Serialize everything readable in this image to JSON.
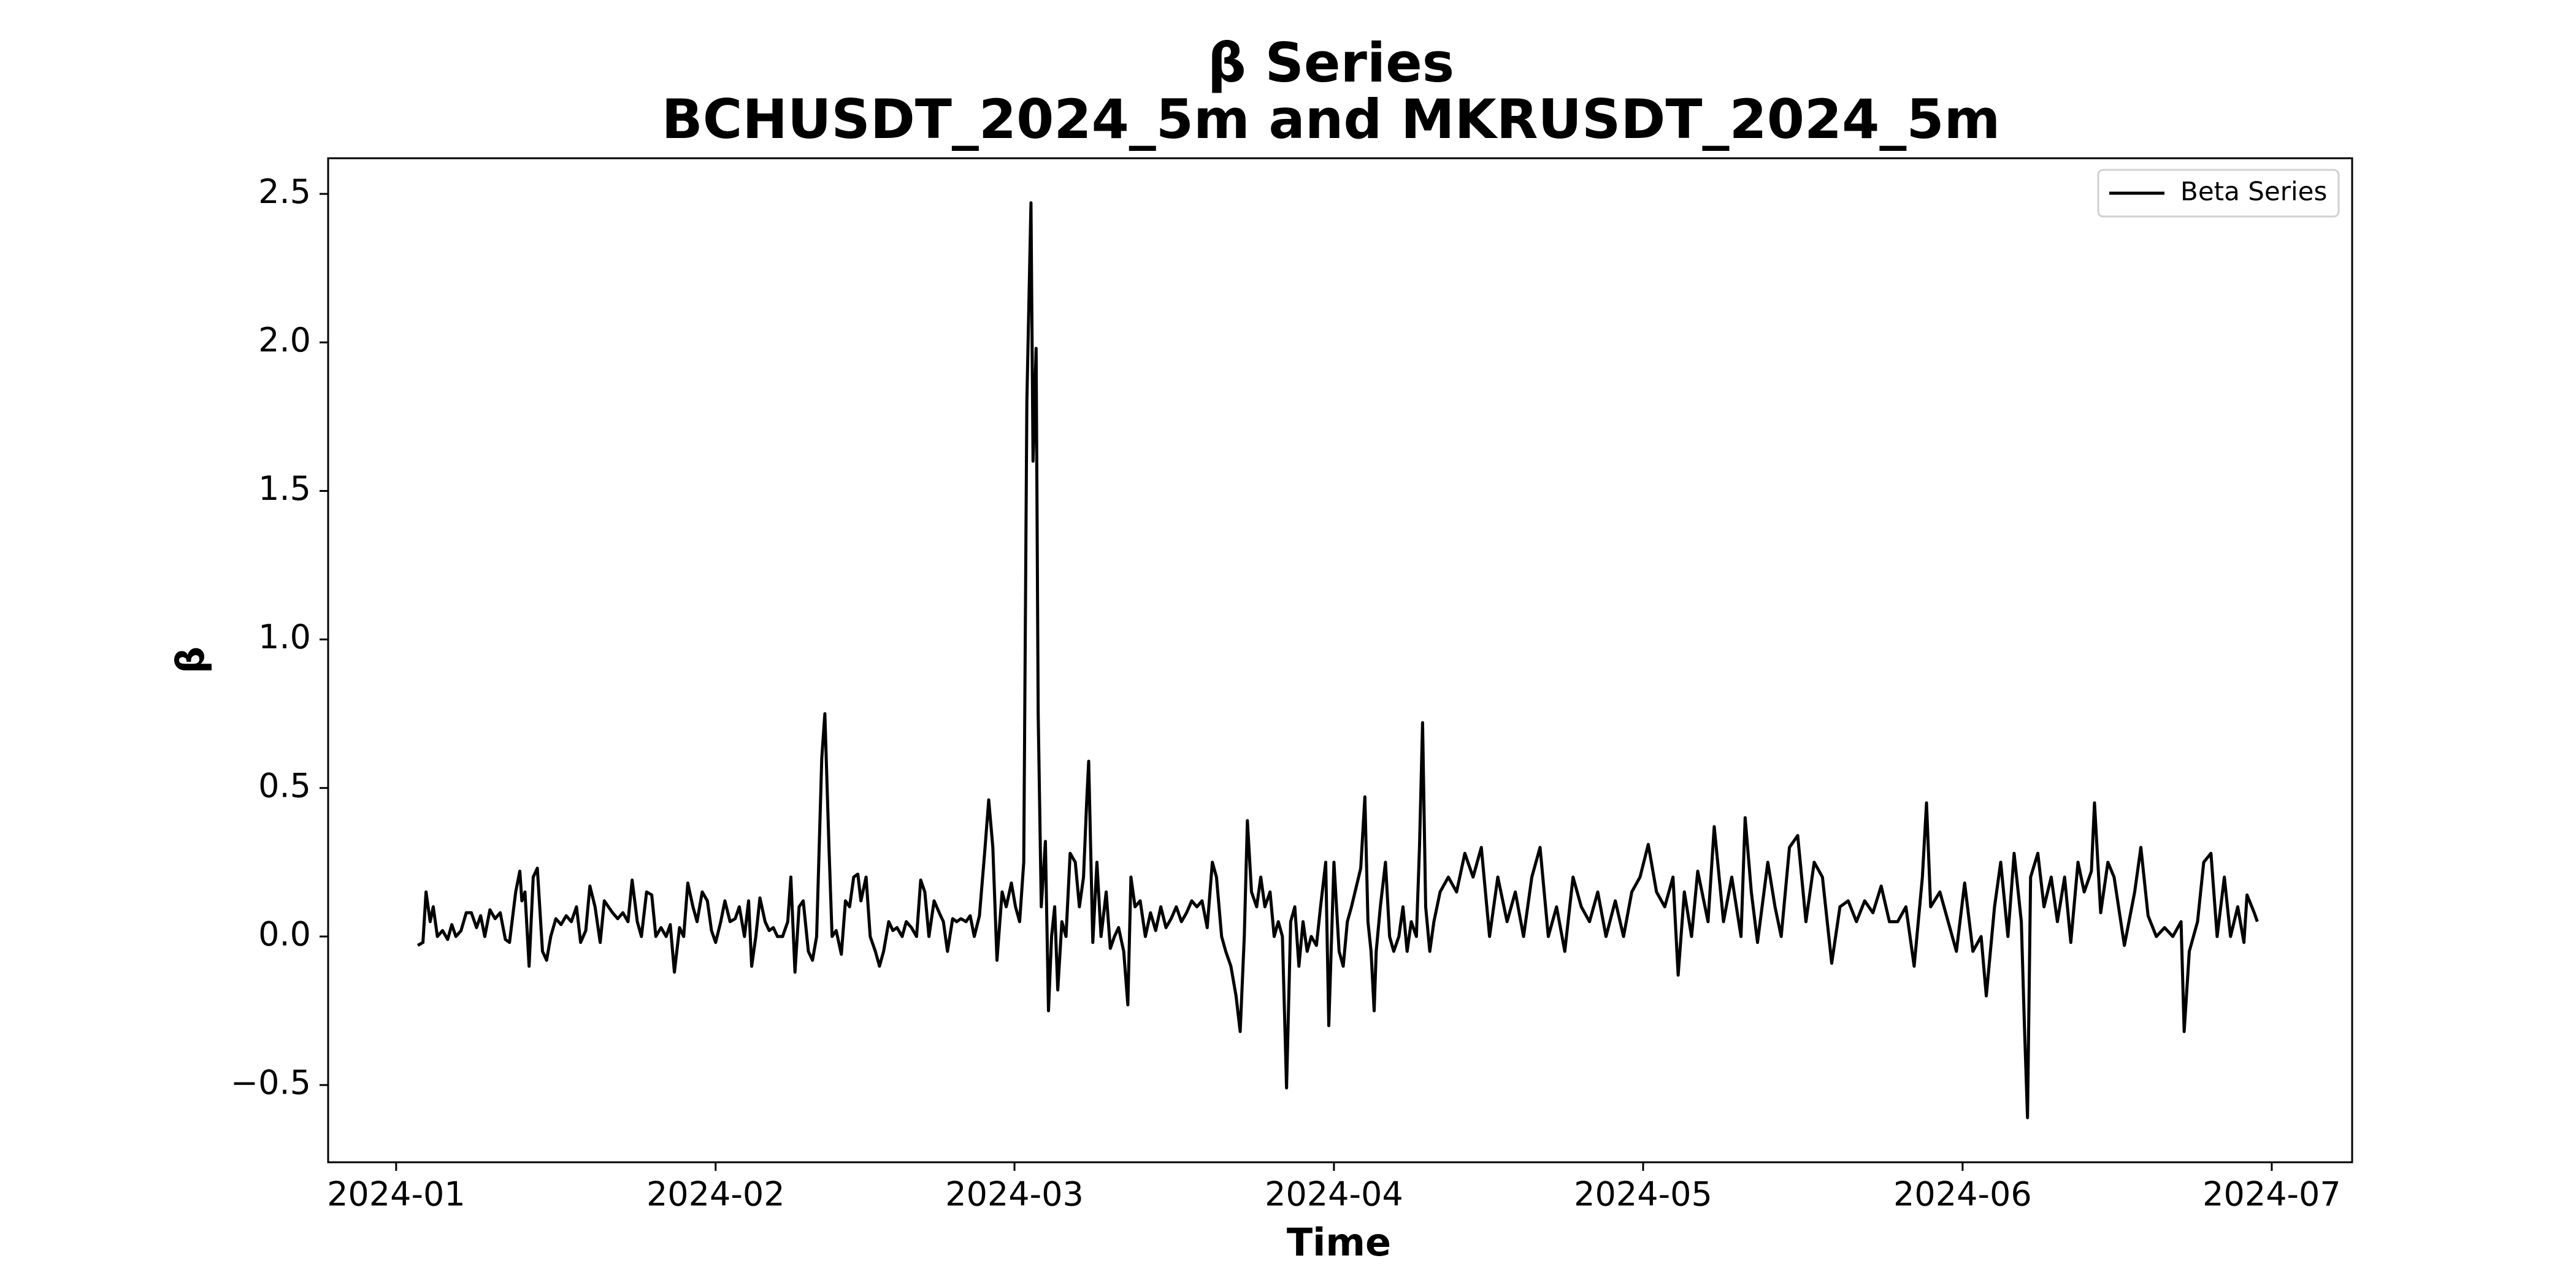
{
  "chart_data": {
    "type": "line",
    "title": "β Series",
    "subtitle": "BCHUSDT_2024_5m and MKRUSDT_2024_5m",
    "xlabel": "Time",
    "ylabel": "β",
    "legend": "upper right",
    "grid": false,
    "xlim": [
      -6.6,
      189.8
    ],
    "xticks": [
      {
        "value": 0,
        "label": "2024-01"
      },
      {
        "value": 31,
        "label": "2024-02"
      },
      {
        "value": 60,
        "label": "2024-03"
      },
      {
        "value": 91,
        "label": "2024-04"
      },
      {
        "value": 121,
        "label": "2024-05"
      },
      {
        "value": 152,
        "label": "2024-06"
      },
      {
        "value": 182,
        "label": "2024-07"
      }
    ],
    "ylim": [
      -0.76,
      2.62
    ],
    "yticks": [
      {
        "value": -0.5,
        "label": "−0.5"
      },
      {
        "value": 0,
        "label": "0.0"
      },
      0.5,
      {
        "value": 1,
        "label": "1.0"
      },
      1.5,
      {
        "value": 2,
        "label": "2.0"
      },
      2.5
    ],
    "x": [
      2.1,
      2.6,
      2.9,
      3.3,
      3.6,
      4.0,
      4.5,
      5.0,
      5.4,
      5.8,
      6.3,
      6.8,
      7.3,
      7.8,
      8.2,
      8.6,
      9.1,
      9.6,
      10.1,
      10.6,
      11.0,
      11.6,
      12.0,
      12.2,
      12.5,
      12.9,
      13.3,
      13.7,
      14.2,
      14.6,
      15.0,
      15.5,
      16.0,
      16.5,
      17.0,
      17.5,
      17.9,
      18.4,
      18.8,
      19.3,
      19.8,
      20.2,
      20.6,
      21.0,
      21.5,
      22.0,
      22.5,
      22.9,
      23.4,
      23.8,
      24.3,
      24.8,
      25.2,
      25.7,
      26.2,
      26.6,
      27.0,
      27.5,
      27.9,
      28.3,
      28.8,
      29.2,
      29.7,
      30.2,
      30.6,
      31.0,
      31.5,
      31.9,
      32.4,
      32.9,
      33.3,
      33.8,
      34.2,
      34.5,
      34.9,
      35.3,
      35.8,
      36.2,
      36.6,
      37.0,
      37.5,
      38.0,
      38.3,
      38.7,
      39.1,
      39.5,
      40.0,
      40.4,
      40.8,
      41.3,
      41.6,
      42.0,
      42.3,
      42.7,
      43.2,
      43.6,
      44.0,
      44.4,
      44.8,
      45.1,
      45.6,
      46.0,
      46.5,
      46.9,
      47.3,
      47.8,
      48.2,
      48.6,
      49.1,
      49.5,
      50.0,
      50.5,
      50.9,
      51.3,
      51.7,
      52.2,
      52.7,
      53.1,
      53.5,
      54.0,
      54.4,
      54.8,
      55.3,
      55.7,
      56.1,
      56.6,
      57.1,
      57.5,
      57.9,
      58.3,
      58.8,
      59.2,
      59.7,
      60.1,
      60.5,
      60.9,
      61.2,
      61.6,
      61.8,
      62.1,
      62.3,
      62.6,
      63.0,
      63.3,
      63.6,
      63.9,
      64.2,
      64.6,
      65.0,
      65.4,
      65.9,
      66.3,
      66.7,
      67.0,
      67.2,
      67.6,
      68.0,
      68.4,
      68.9,
      69.3,
      69.7,
      70.1,
      70.6,
      71.0,
      71.3,
      71.7,
      72.2,
      72.7,
      73.2,
      73.7,
      74.2,
      74.7,
      75.2,
      75.7,
      76.2,
      76.7,
      77.2,
      77.7,
      78.2,
      78.7,
      79.2,
      79.6,
      80.1,
      80.5,
      81.0,
      81.5,
      81.9,
      82.3,
      82.6,
      83.0,
      83.5,
      83.9,
      84.3,
      84.8,
      85.2,
      85.6,
      86.0,
      86.4,
      86.8,
      87.2,
      87.6,
      88.0,
      88.4,
      88.8,
      89.3,
      89.7,
      90.2,
      90.5,
      91.0,
      91.5,
      91.9,
      92.3,
      92.7,
      93.6,
      94.0,
      94.3,
      94.6,
      94.9,
      95.1,
      95.5,
      96.0,
      96.4,
      96.8,
      97.3,
      97.7,
      98.1,
      98.5,
      99.0,
      99.3,
      99.6,
      99.9,
      100.3,
      100.7,
      101.3,
      102.1,
      102.9,
      103.7,
      104.5,
      105.3,
      106.1,
      106.9,
      107.8,
      108.6,
      109.4,
      110.2,
      111.0,
      111.8,
      112.6,
      113.4,
      114.2,
      115.0,
      115.8,
      116.6,
      117.4,
      118.3,
      119.1,
      119.9,
      120.7,
      121.5,
      122.3,
      123.1,
      123.9,
      124.4,
      125.0,
      125.7,
      126.3,
      127.3,
      127.9,
      128.8,
      129.6,
      130.5,
      130.9,
      131.5,
      132.1,
      133.1,
      133.8,
      134.4,
      135.2,
      136.0,
      136.8,
      137.6,
      138.4,
      139.3,
      140.1,
      140.9,
      141.7,
      142.5,
      143.3,
      144.1,
      144.9,
      145.7,
      146.5,
      147.3,
      148.1,
      148.5,
      148.9,
      149.8,
      150.6,
      151.4,
      152.2,
      153.0,
      153.8,
      154.3,
      155.1,
      155.7,
      156.4,
      157.0,
      157.7,
      158.0,
      158.3,
      158.6,
      159.3,
      159.9,
      160.6,
      161.2,
      161.9,
      162.5,
      163.2,
      163.8,
      164.5,
      164.8,
      165.4,
      166.1,
      166.7,
      167.7,
      168.7,
      169.3,
      170.0,
      170.8,
      171.6,
      172.4,
      173.2,
      173.5,
      174.0,
      174.8,
      175.4,
      176.1,
      176.7,
      177.4,
      178.0,
      178.7,
      179.3,
      179.6,
      180.3,
      180.6
    ],
    "series": [
      {
        "name": "Beta Series",
        "color": "#000000",
        "values": [
          -0.03,
          -0.02,
          0.15,
          0.05,
          0.1,
          0.0,
          0.02,
          -0.01,
          0.04,
          0.0,
          0.02,
          0.08,
          0.08,
          0.03,
          0.07,
          0.0,
          0.09,
          0.06,
          0.08,
          -0.01,
          -0.02,
          0.15,
          0.22,
          0.12,
          0.15,
          -0.1,
          0.2,
          0.23,
          -0.05,
          -0.08,
          0.0,
          0.06,
          0.04,
          0.07,
          0.05,
          0.1,
          -0.02,
          0.02,
          0.17,
          0.1,
          -0.02,
          0.12,
          0.1,
          0.08,
          0.06,
          0.08,
          0.05,
          0.19,
          0.05,
          0.0,
          0.15,
          0.14,
          0.0,
          0.03,
          0.0,
          0.04,
          -0.12,
          0.03,
          0.0,
          0.18,
          0.1,
          0.05,
          0.15,
          0.12,
          0.02,
          -0.02,
          0.05,
          0.12,
          0.05,
          0.06,
          0.1,
          0.0,
          0.12,
          -0.1,
          0.0,
          0.13,
          0.05,
          0.02,
          0.03,
          0.0,
          0.0,
          0.05,
          0.2,
          -0.12,
          0.1,
          0.12,
          -0.05,
          -0.08,
          0.0,
          0.6,
          0.75,
          0.3,
          0.0,
          0.02,
          -0.06,
          0.12,
          0.1,
          0.2,
          0.21,
          0.12,
          0.2,
          0.0,
          -0.05,
          -0.1,
          -0.05,
          0.05,
          0.02,
          0.03,
          0.0,
          0.05,
          0.03,
          0.0,
          0.19,
          0.15,
          0.0,
          0.12,
          0.08,
          0.05,
          -0.05,
          0.06,
          0.05,
          0.06,
          0.05,
          0.07,
          0.0,
          0.07,
          0.28,
          0.46,
          0.3,
          -0.08,
          0.15,
          0.1,
          0.18,
          0.1,
          0.05,
          0.25,
          1.8,
          2.47,
          1.6,
          1.98,
          0.75,
          0.1,
          0.32,
          -0.25,
          0.0,
          0.1,
          -0.18,
          0.05,
          0.0,
          0.28,
          0.25,
          0.1,
          0.2,
          0.45,
          0.59,
          -0.02,
          0.25,
          0.0,
          0.15,
          -0.04,
          0.0,
          0.03,
          -0.05,
          -0.23,
          0.2,
          0.1,
          0.12,
          0.0,
          0.08,
          0.02,
          0.1,
          0.03,
          0.06,
          0.1,
          0.05,
          0.08,
          0.12,
          0.1,
          0.12,
          0.03,
          0.25,
          0.2,
          0.0,
          -0.05,
          -0.1,
          -0.2,
          -0.32,
          0.0,
          0.39,
          0.15,
          0.1,
          0.2,
          0.1,
          0.15,
          0.0,
          0.05,
          0.0,
          -0.51,
          0.05,
          0.1,
          -0.1,
          0.05,
          -0.05,
          0.0,
          -0.03,
          0.1,
          0.25,
          -0.3,
          0.25,
          -0.05,
          -0.1,
          0.05,
          0.1,
          0.23,
          0.47,
          0.05,
          -0.05,
          -0.25,
          -0.05,
          0.1,
          0.25,
          0.0,
          -0.05,
          0.0,
          0.1,
          -0.05,
          0.05,
          0.0,
          0.3,
          0.72,
          0.1,
          -0.05,
          0.05,
          0.15,
          0.2,
          0.15,
          0.28,
          0.2,
          0.3,
          0.0,
          0.2,
          0.05,
          0.15,
          0.0,
          0.2,
          0.3,
          0.0,
          0.1,
          -0.05,
          0.2,
          0.1,
          0.05,
          0.15,
          0.0,
          0.12,
          0.0,
          0.15,
          0.2,
          0.31,
          0.15,
          0.1,
          0.2,
          -0.13,
          0.15,
          0.0,
          0.22,
          0.05,
          0.37,
          0.05,
          0.2,
          0.0,
          0.4,
          0.15,
          -0.02,
          0.25,
          0.1,
          0.0,
          0.3,
          0.34,
          0.05,
          0.25,
          0.2,
          -0.09,
          0.1,
          0.12,
          0.05,
          0.12,
          0.08,
          0.17,
          0.05,
          0.05,
          0.1,
          -0.1,
          0.2,
          0.45,
          0.1,
          0.15,
          0.05,
          -0.05,
          0.18,
          -0.05,
          0.0,
          -0.2,
          0.1,
          0.25,
          0.0,
          0.28,
          0.05,
          -0.3,
          -0.61,
          0.2,
          0.28,
          0.1,
          0.2,
          0.05,
          0.2,
          -0.02,
          0.25,
          0.15,
          0.22,
          0.45,
          0.08,
          0.25,
          0.2,
          -0.03,
          0.15,
          0.3,
          0.07,
          0.0,
          0.03,
          0.0,
          0.05,
          -0.32,
          -0.05,
          0.05,
          0.25,
          0.28,
          0.0,
          0.2,
          0.0,
          0.1,
          -0.02,
          0.14,
          0.08,
          0.05
        ]
      }
    ]
  }
}
